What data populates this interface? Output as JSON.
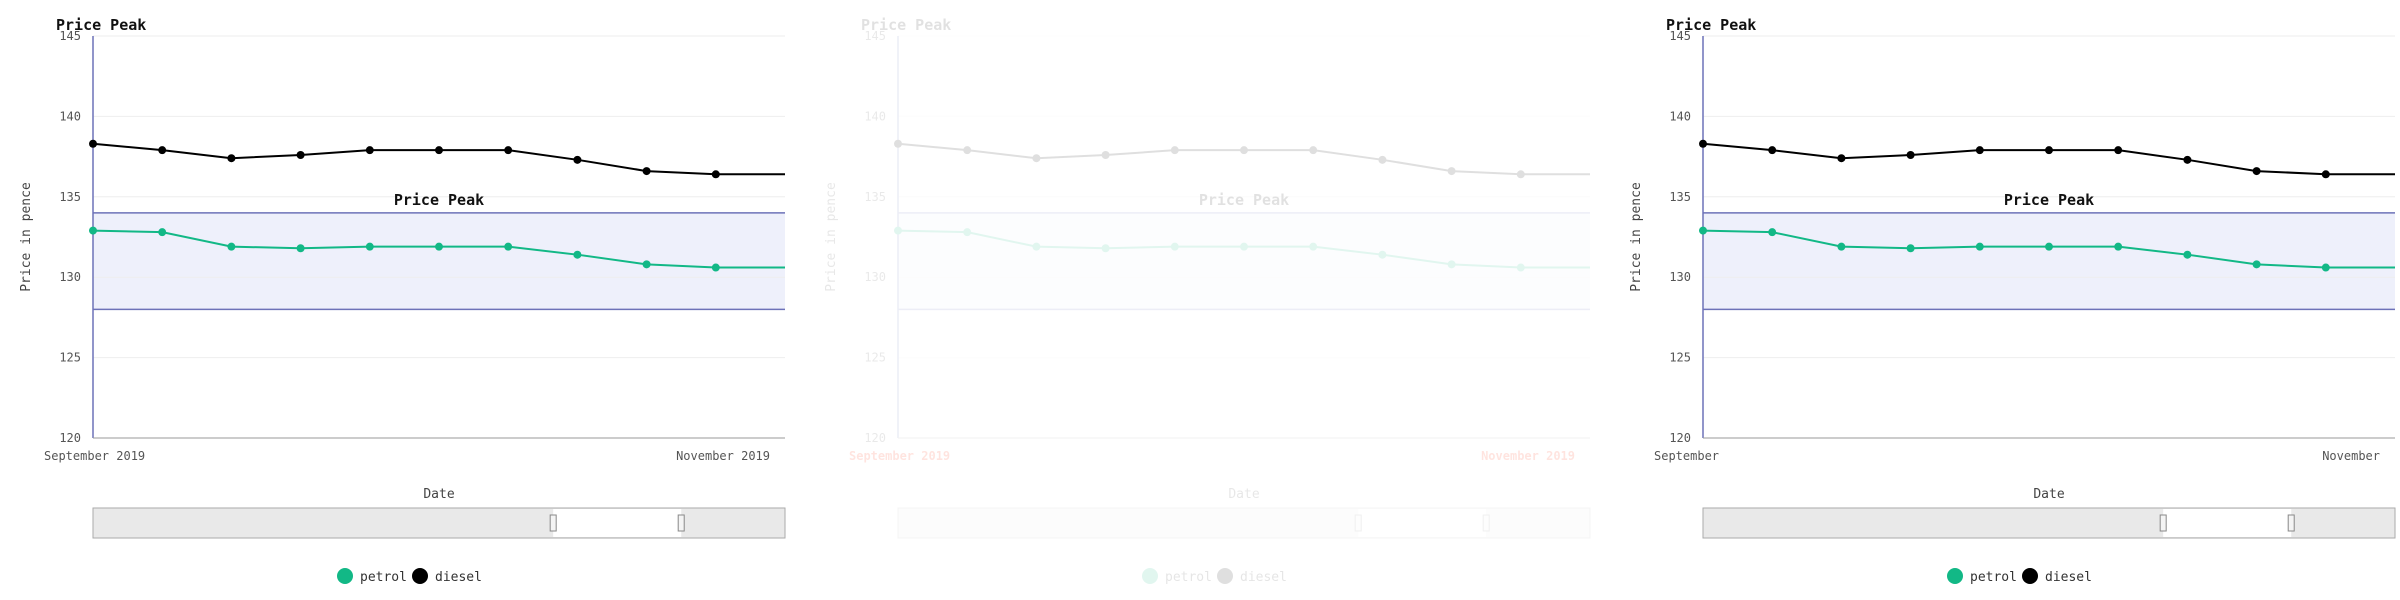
{
  "chart_data": [
    {
      "type": "line",
      "title": "Price Peak",
      "band_title": "Price Peak",
      "faded": false,
      "x_tick_labels": [
        "September 2019",
        "November 2019"
      ],
      "xlabel": "Date",
      "ylabel": "Price in pence",
      "ylim": [
        120,
        145
      ],
      "yticks": [
        120,
        125,
        130,
        135,
        140,
        145
      ],
      "highlight_band": [
        128,
        134
      ],
      "x": [
        0,
        1,
        2,
        3,
        4,
        5,
        6,
        7,
        8,
        9,
        10
      ],
      "series": [
        {
          "name": "petrol",
          "color": "#12b886",
          "values": [
            132.9,
            132.8,
            131.9,
            131.8,
            131.9,
            131.9,
            131.9,
            131.4,
            130.8,
            130.6,
            130.6
          ]
        },
        {
          "name": "diesel",
          "color": "#000000",
          "values": [
            138.3,
            137.9,
            137.4,
            137.6,
            137.9,
            137.9,
            137.9,
            137.3,
            136.6,
            136.4,
            136.4
          ]
        }
      ],
      "legend": [
        "petrol",
        "diesel"
      ],
      "legend_position": "bottom",
      "brush_selection": [
        0.665,
        0.85
      ]
    },
    {
      "type": "line",
      "title": "Price Peak",
      "band_title": "Price Peak",
      "faded": true,
      "x_tick_labels": [
        "September 2019",
        "November 2019"
      ],
      "xlabel": "Date",
      "ylabel": "Price in pence",
      "ylim": [
        120,
        145
      ],
      "yticks": [
        120,
        125,
        130,
        135,
        140,
        145
      ],
      "highlight_band": [
        128,
        134
      ],
      "x": [
        0,
        1,
        2,
        3,
        4,
        5,
        6,
        7,
        8,
        9,
        10
      ],
      "series": [
        {
          "name": "petrol",
          "color": "#12b886",
          "values": [
            132.9,
            132.8,
            131.9,
            131.8,
            131.9,
            131.9,
            131.9,
            131.4,
            130.8,
            130.6,
            130.6
          ]
        },
        {
          "name": "diesel",
          "color": "#000000",
          "values": [
            138.3,
            137.9,
            137.4,
            137.6,
            137.9,
            137.9,
            137.9,
            137.3,
            136.6,
            136.4,
            136.4
          ]
        }
      ],
      "legend": [
        "petrol",
        "diesel"
      ],
      "legend_position": "bottom",
      "brush_selection": [
        0.665,
        0.85
      ]
    },
    {
      "type": "line",
      "title": "Price Peak",
      "band_title": "Price Peak",
      "faded": false,
      "x_tick_labels": [
        "September",
        "November"
      ],
      "xlabel": "Date",
      "ylabel": "Price in pence",
      "ylim": [
        120,
        145
      ],
      "yticks": [
        120,
        125,
        130,
        135,
        140,
        145
      ],
      "highlight_band": [
        128,
        134
      ],
      "x": [
        0,
        1,
        2,
        3,
        4,
        5,
        6,
        7,
        8,
        9,
        10
      ],
      "series": [
        {
          "name": "petrol",
          "color": "#12b886",
          "values": [
            132.9,
            132.8,
            131.9,
            131.8,
            131.9,
            131.9,
            131.9,
            131.4,
            130.8,
            130.6,
            130.6
          ]
        },
        {
          "name": "diesel",
          "color": "#000000",
          "values": [
            138.3,
            137.9,
            137.4,
            137.6,
            137.9,
            137.9,
            137.9,
            137.3,
            136.6,
            136.4,
            136.4
          ]
        }
      ],
      "legend": [
        "petrol",
        "diesel"
      ],
      "legend_position": "bottom",
      "brush_selection": [
        0.665,
        0.85
      ]
    }
  ]
}
